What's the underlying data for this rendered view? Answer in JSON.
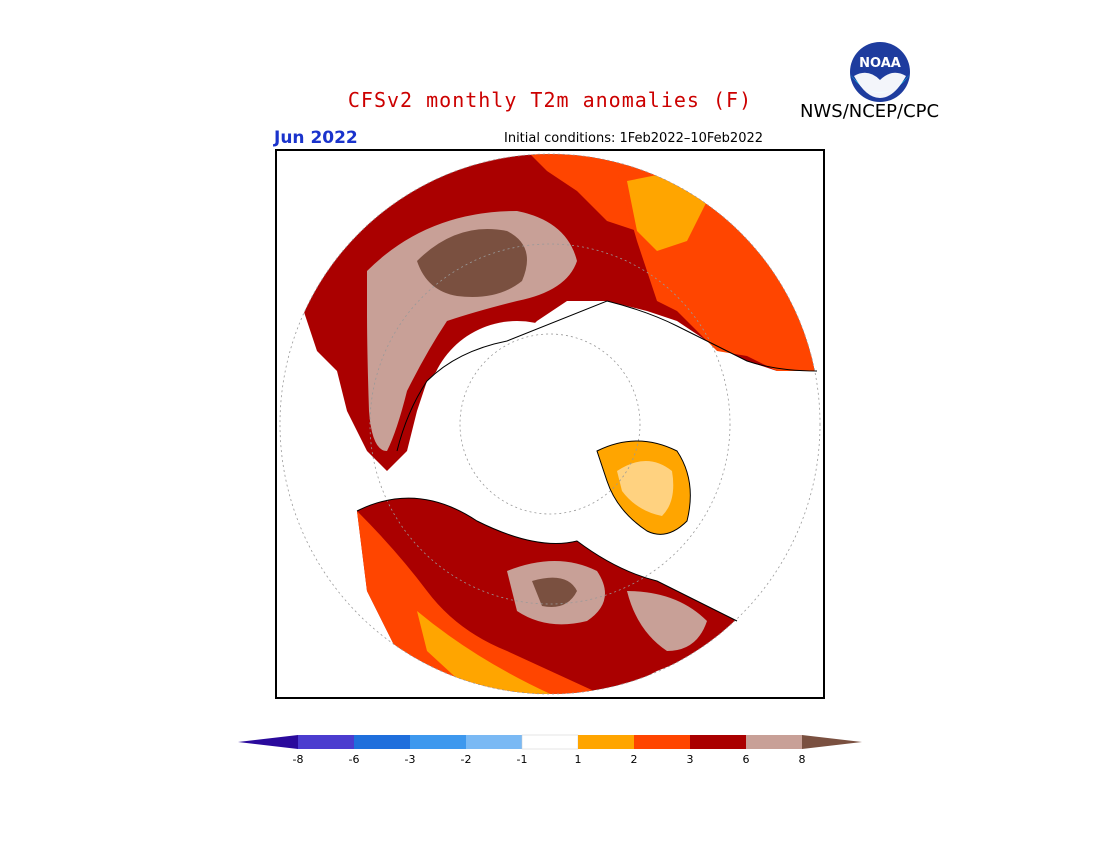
{
  "header": {
    "title": "CFSv2 monthly T2m anomalies (F)",
    "agency": "NWS/NCEP/CPC",
    "logo_text": "NOAA",
    "month": "Jun 2022",
    "initial_conditions": "Initial conditions: 1Feb2022–10Feb2022"
  },
  "map": {
    "projection": "north polar stereographic",
    "description_colors": {
      "land_outline": "#000000",
      "graticule": "#999999"
    }
  },
  "colorbar": {
    "labels": [
      "-8",
      "-6",
      "-3",
      "-2",
      "-1",
      "1",
      "2",
      "3",
      "6",
      "8"
    ],
    "colors": [
      "#2a0a9c",
      "#4b3ccf",
      "#1f6fdc",
      "#3d98ee",
      "#7ab9f4",
      "#ffffff",
      "#ffa500",
      "#ff4500",
      "#aa0000",
      "#c8a097",
      "#7a5040"
    ]
  }
}
